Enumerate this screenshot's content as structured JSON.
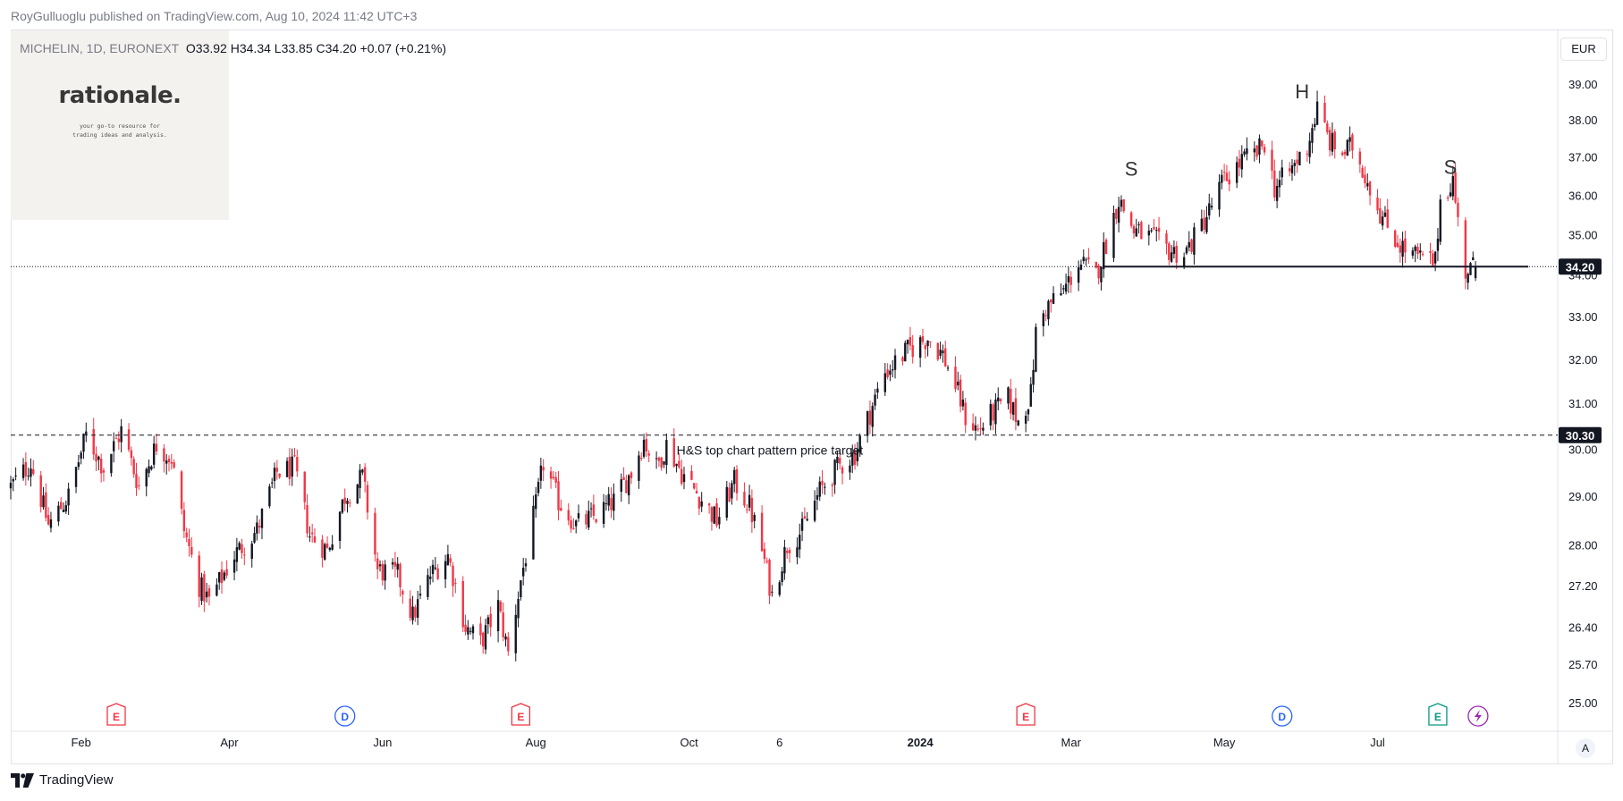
{
  "header": {
    "publisher": "RoyGulluoglu published on TradingView.com, Aug 10, 2024 11:42 UTC+3"
  },
  "legend": {
    "symbol": "MICHELIN, 1D, EURONEXT",
    "open": "O33.92",
    "high": "H34.34",
    "low": "L33.85",
    "close": "C34.20",
    "change": "+0.07 (+0.21%)"
  },
  "logo": {
    "wordmark": "rationale.",
    "tagline": "your go-to resource for trading ideas and analysis."
  },
  "currency": "EUR",
  "auto_button": "A",
  "footer": {
    "brand": "TradingView"
  },
  "colors": {
    "up": "#131722",
    "down": "#f23645",
    "grid_line": "#e0e3eb",
    "price_label_bg": "#131722",
    "earnings": "#f23645",
    "earnings_future": "#089981",
    "dividend": "#2962ff",
    "split": "#9c27b0"
  },
  "chart_data": {
    "type": "candlestick",
    "title": "",
    "symbol": "MICHELIN",
    "interval": "1D",
    "exchange": "EURONEXT",
    "currency": "EUR",
    "y_scale": "log",
    "ylim": [
      24.7,
      39.6
    ],
    "x_range": [
      "2023-01-04",
      "2024-09-10"
    ],
    "y_ticks": [
      "39.00",
      "38.00",
      "37.00",
      "36.00",
      "35.00",
      "34.00",
      "33.00",
      "32.00",
      "31.00",
      "30.00",
      "29.00",
      "28.00",
      "27.20",
      "26.40",
      "25.70",
      "25.00"
    ],
    "x_ticks": [
      {
        "label": "Feb",
        "date": "2023-02-01"
      },
      {
        "label": "Apr",
        "date": "2023-04-01"
      },
      {
        "label": "Jun",
        "date": "2023-06-01"
      },
      {
        "label": "Aug",
        "date": "2023-08-01"
      },
      {
        "label": "Oct",
        "date": "2023-10-01"
      },
      {
        "label": "6",
        "date": "2023-11-06"
      },
      {
        "label": "2024",
        "date": "2024-01-01",
        "bold": true
      },
      {
        "label": "Mar",
        "date": "2024-03-01"
      },
      {
        "label": "May",
        "date": "2024-05-01"
      },
      {
        "label": "Jul",
        "date": "2024-07-01"
      }
    ],
    "close_path": [
      {
        "date": "2023-01-04",
        "close": 29.2
      },
      {
        "date": "2023-01-12",
        "close": 29.7
      },
      {
        "date": "2023-01-19",
        "close": 28.4
      },
      {
        "date": "2023-01-27",
        "close": 29.0
      },
      {
        "date": "2023-02-03",
        "close": 30.3
      },
      {
        "date": "2023-02-10",
        "close": 29.6
      },
      {
        "date": "2023-02-17",
        "close": 30.4
      },
      {
        "date": "2023-02-24",
        "close": 29.2
      },
      {
        "date": "2023-03-03",
        "close": 30.1
      },
      {
        "date": "2023-03-09",
        "close": 29.8
      },
      {
        "date": "2023-03-14",
        "close": 28.3
      },
      {
        "date": "2023-03-20",
        "close": 27.2
      },
      {
        "date": "2023-03-24",
        "close": 26.9
      },
      {
        "date": "2023-04-03",
        "close": 27.8
      },
      {
        "date": "2023-04-12",
        "close": 28.3
      },
      {
        "date": "2023-04-20",
        "close": 29.5
      },
      {
        "date": "2023-04-27",
        "close": 29.6
      },
      {
        "date": "2023-05-03",
        "close": 28.2
      },
      {
        "date": "2023-05-10",
        "close": 27.9
      },
      {
        "date": "2023-05-17",
        "close": 29.0
      },
      {
        "date": "2023-05-24",
        "close": 29.4
      },
      {
        "date": "2023-05-30",
        "close": 27.5
      },
      {
        "date": "2023-06-07",
        "close": 27.4
      },
      {
        "date": "2023-06-13",
        "close": 26.6
      },
      {
        "date": "2023-06-20",
        "close": 27.4
      },
      {
        "date": "2023-06-27",
        "close": 27.8
      },
      {
        "date": "2023-07-04",
        "close": 26.4
      },
      {
        "date": "2023-07-10",
        "close": 26.1
      },
      {
        "date": "2023-07-17",
        "close": 26.8
      },
      {
        "date": "2023-07-21",
        "close": 25.9
      },
      {
        "date": "2023-07-26",
        "close": 27.3
      },
      {
        "date": "2023-08-01",
        "close": 28.8
      },
      {
        "date": "2023-08-04",
        "close": 29.7
      },
      {
        "date": "2023-08-10",
        "close": 28.9
      },
      {
        "date": "2023-08-17",
        "close": 28.4
      },
      {
        "date": "2023-08-25",
        "close": 28.6
      },
      {
        "date": "2023-09-01",
        "close": 28.9
      },
      {
        "date": "2023-09-08",
        "close": 29.5
      },
      {
        "date": "2023-09-13",
        "close": 30.2
      },
      {
        "date": "2023-09-18",
        "close": 29.6
      },
      {
        "date": "2023-09-22",
        "close": 30.1
      },
      {
        "date": "2023-09-28",
        "close": 29.5
      },
      {
        "date": "2023-10-05",
        "close": 29.0
      },
      {
        "date": "2023-10-12",
        "close": 28.5
      },
      {
        "date": "2023-10-19",
        "close": 29.3
      },
      {
        "date": "2023-10-25",
        "close": 28.8
      },
      {
        "date": "2023-10-30",
        "close": 27.9
      },
      {
        "date": "2023-11-03",
        "close": 27.0
      },
      {
        "date": "2023-11-09",
        "close": 28.0
      },
      {
        "date": "2023-11-15",
        "close": 28.3
      },
      {
        "date": "2023-11-22",
        "close": 29.1
      },
      {
        "date": "2023-11-29",
        "close": 29.6
      },
      {
        "date": "2023-12-06",
        "close": 29.9
      },
      {
        "date": "2023-12-12",
        "close": 30.8
      },
      {
        "date": "2023-12-18",
        "close": 31.7
      },
      {
        "date": "2023-12-27",
        "close": 32.2
      },
      {
        "date": "2024-01-04",
        "close": 32.5
      },
      {
        "date": "2024-01-10",
        "close": 32.1
      },
      {
        "date": "2024-01-15",
        "close": 31.4
      },
      {
        "date": "2024-01-19",
        "close": 30.7
      },
      {
        "date": "2024-01-24",
        "close": 30.4
      },
      {
        "date": "2024-01-30",
        "close": 30.8
      },
      {
        "date": "2024-02-05",
        "close": 31.1
      },
      {
        "date": "2024-02-09",
        "close": 30.6
      },
      {
        "date": "2024-02-14",
        "close": 31.2
      },
      {
        "date": "2024-02-16",
        "close": 32.6
      },
      {
        "date": "2024-02-20",
        "close": 33.2
      },
      {
        "date": "2024-02-27",
        "close": 33.6
      },
      {
        "date": "2024-03-04",
        "close": 34.3
      },
      {
        "date": "2024-03-11",
        "close": 34.0
      },
      {
        "date": "2024-03-15",
        "close": 34.8
      },
      {
        "date": "2024-03-20",
        "close": 35.9
      },
      {
        "date": "2024-03-26",
        "close": 35.1
      },
      {
        "date": "2024-04-02",
        "close": 34.9
      },
      {
        "date": "2024-04-09",
        "close": 34.6
      },
      {
        "date": "2024-04-15",
        "close": 34.5
      },
      {
        "date": "2024-04-19",
        "close": 34.9
      },
      {
        "date": "2024-04-25",
        "close": 35.6
      },
      {
        "date": "2024-04-30",
        "close": 36.3
      },
      {
        "date": "2024-05-08",
        "close": 36.9
      },
      {
        "date": "2024-05-14",
        "close": 37.1
      },
      {
        "date": "2024-05-17",
        "close": 37.4
      },
      {
        "date": "2024-05-21",
        "close": 36.2
      },
      {
        "date": "2024-05-27",
        "close": 36.6
      },
      {
        "date": "2024-06-03",
        "close": 37.3
      },
      {
        "date": "2024-06-07",
        "close": 38.3
      },
      {
        "date": "2024-06-12",
        "close": 37.4
      },
      {
        "date": "2024-06-17",
        "close": 37.1
      },
      {
        "date": "2024-06-21",
        "close": 37.3
      },
      {
        "date": "2024-06-27",
        "close": 36.4
      },
      {
        "date": "2024-07-03",
        "close": 35.4
      },
      {
        "date": "2024-07-08",
        "close": 34.9
      },
      {
        "date": "2024-07-12",
        "close": 34.6
      },
      {
        "date": "2024-07-18",
        "close": 34.4
      },
      {
        "date": "2024-07-24",
        "close": 34.3
      },
      {
        "date": "2024-07-26",
        "close": 35.9
      },
      {
        "date": "2024-07-31",
        "close": 36.4
      },
      {
        "date": "2024-08-02",
        "close": 35.3
      },
      {
        "date": "2024-08-05",
        "close": 34.1
      },
      {
        "date": "2024-08-09",
        "close": 34.2
      }
    ],
    "last_price": 34.2,
    "horizontal_lines": [
      {
        "price": 34.2,
        "label": "34.20",
        "style": "dotted"
      },
      {
        "price": 30.3,
        "label": "30.30",
        "style": "dashed"
      }
    ],
    "neckline": {
      "price": 34.2,
      "from": "2024-03-14",
      "to": "2024-08-30"
    },
    "annotations": [
      {
        "text": "S",
        "date": "2024-03-25",
        "price": 36.7
      },
      {
        "text": "H",
        "date": "2024-06-01",
        "price": 38.8
      },
      {
        "text": "S",
        "date": "2024-07-30",
        "price": 36.75
      },
      {
        "text": "H&S top chart pattern price target",
        "date": "2023-09-26",
        "price": 29.98
      }
    ],
    "events": [
      {
        "type": "E",
        "date": "2023-02-15",
        "status": "past"
      },
      {
        "type": "D",
        "date": "2023-05-17",
        "status": "past"
      },
      {
        "type": "E",
        "date": "2023-07-26",
        "status": "past"
      },
      {
        "type": "E",
        "date": "2024-02-12",
        "status": "past"
      },
      {
        "type": "D",
        "date": "2024-05-24",
        "status": "past"
      },
      {
        "type": "E",
        "date": "2024-07-25",
        "status": "upcoming"
      },
      {
        "type": "split",
        "date": "2024-08-10",
        "status": "upcoming"
      }
    ]
  }
}
